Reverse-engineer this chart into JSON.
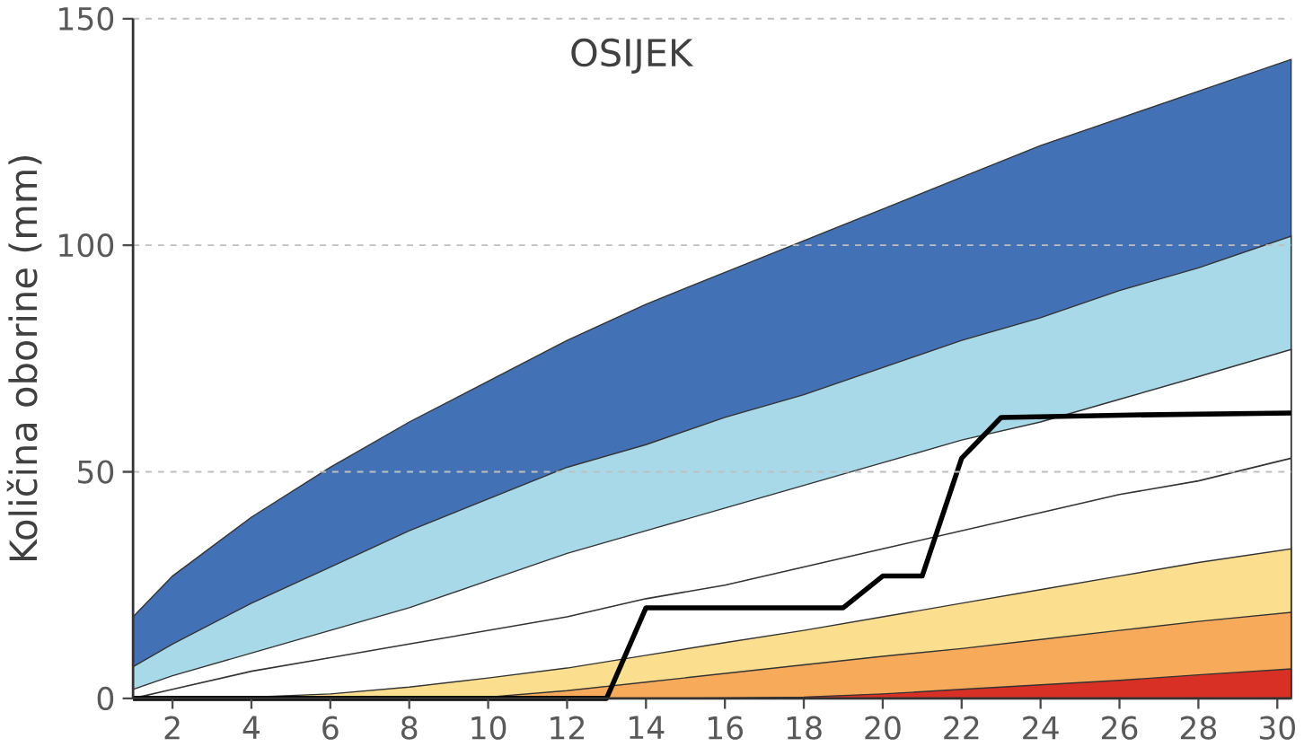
{
  "chart_data": {
    "type": "area",
    "title": "OSIJEK",
    "ylabel": "Količina oborine (mm)",
    "x": [
      1,
      2,
      4,
      6,
      8,
      10,
      12,
      14,
      16,
      18,
      20,
      22,
      24,
      26,
      28,
      30.35
    ],
    "xlim": [
      1,
      30.35
    ],
    "xticks": [
      2,
      4,
      6,
      8,
      10,
      12,
      14,
      16,
      18,
      20,
      22,
      24,
      26,
      28,
      30
    ],
    "ylim": [
      0,
      150
    ],
    "yticks": [
      0,
      50,
      100,
      150
    ],
    "grid": "y",
    "series": [
      {
        "color": "#4272b5",
        "values": [
          18,
          27,
          40,
          51,
          61,
          70,
          79,
          87,
          94,
          101,
          108,
          115,
          122,
          128,
          134,
          141
        ]
      },
      {
        "color": "#a8d9e8",
        "values": [
          7,
          12,
          21,
          29,
          37,
          44,
          51,
          56,
          62,
          67,
          73,
          79,
          84,
          90,
          95,
          102
        ]
      },
      {
        "color": "#ffffff",
        "values": [
          2,
          5,
          10,
          15,
          20,
          26,
          32,
          37,
          42,
          47,
          52,
          57,
          61,
          66,
          71,
          77
        ]
      },
      {
        "type": "line",
        "color": "#333333",
        "values": [
          0,
          2,
          6,
          9,
          12,
          15,
          18,
          22,
          25,
          29,
          33,
          37,
          41,
          45,
          48,
          53
        ]
      },
      {
        "color": "#fbdf8e",
        "values": [
          0,
          0,
          0.3,
          1,
          2.5,
          4.5,
          6.7,
          9.5,
          12.3,
          15,
          18,
          21,
          24,
          27,
          30,
          33
        ]
      },
      {
        "color": "#f7ab5a",
        "values": [
          0,
          0,
          0,
          0,
          0,
          0.3,
          1.7,
          3.6,
          5.5,
          7.4,
          9.3,
          11,
          13,
          15,
          17,
          19
        ]
      },
      {
        "color": "#d93025",
        "values": [
          0,
          0,
          0,
          0,
          0,
          0,
          0,
          0,
          0.1,
          0.3,
          1,
          2,
          3,
          4,
          5.2,
          6.5
        ]
      },
      {
        "type": "line",
        "color": "#000000",
        "x": [
          1,
          13,
          14,
          19,
          20,
          21,
          22,
          23,
          26,
          30.35
        ],
        "values": [
          0,
          0,
          20,
          20,
          27,
          27,
          53,
          62,
          62.5,
          63
        ]
      }
    ]
  }
}
